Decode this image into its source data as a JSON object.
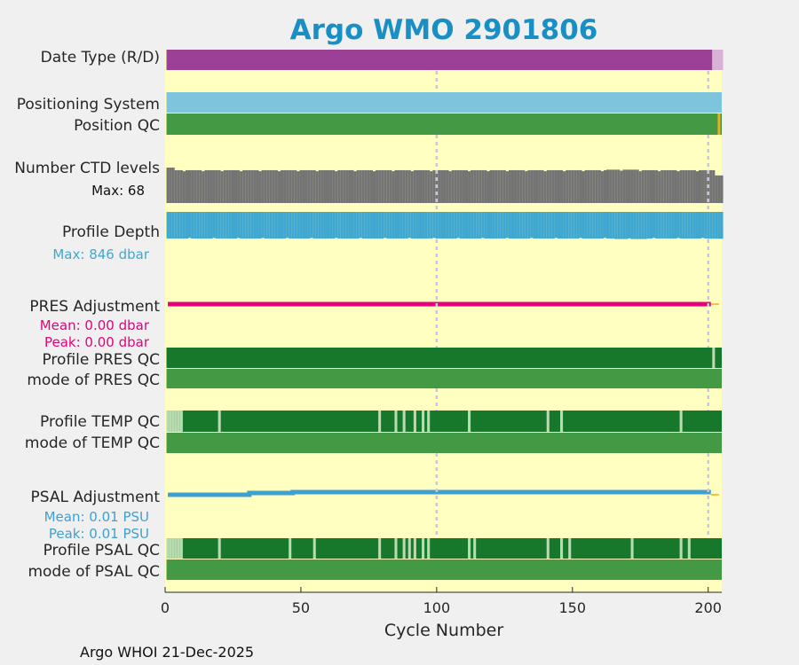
{
  "chart_data": {
    "type": "status-timeline",
    "title": "Argo WMO 2901806",
    "xlabel": "Cycle Number",
    "xlim": [
      0,
      205
    ],
    "xticks": [
      0,
      50,
      100,
      150,
      200
    ],
    "footer": "Argo WHOI 21-Dec-2025",
    "dashed_cycles": [
      100,
      200
    ],
    "colors": {
      "title": "#1a8fc4",
      "background": "#ffffc0",
      "realtime": "#9b3f97",
      "delayed": "#d9b0d6",
      "positioning": "#7ec4dd",
      "qc_good": "#449944",
      "qc_dark": "#17772b",
      "qc_light": "#b8dbb0",
      "qc_warn": "#e6b020",
      "ctd": "#747474",
      "depth": "#40a8d0",
      "pres": "#e6007e",
      "psal": "#3fa0d0",
      "text": "#262626"
    },
    "rows": {
      "date_type": {
        "label": "Date Type (R/D)",
        "realtime_cycles": [
          1,
          201
        ],
        "delayed_cycles": [
          202,
          205
        ]
      },
      "positioning": {
        "label": "Positioning System"
      },
      "position_qc": {
        "label": "Position QC",
        "flag_cycles": [
          204
        ]
      },
      "ctd_levels": {
        "label": "Number CTD levels",
        "max_text": "Max: 68",
        "max": 68,
        "typical": 63,
        "first_cycles": 68
      },
      "profile_depth": {
        "label": "Profile Depth",
        "max_text": "Max:  846 dbar",
        "max": 846,
        "typical": 820
      },
      "pres_adjust": {
        "label": "PRES Adjustment",
        "mean_text": "Mean: 0.00 dbar",
        "peak_text": "Peak: 0.00 dbar",
        "value": 0.0
      },
      "profile_pres_qc": {
        "label": "Profile PRES QC",
        "light_cycles": [
          202
        ]
      },
      "mode_pres_qc": {
        "label": "mode of PRES QC"
      },
      "profile_temp_qc": {
        "label": "Profile TEMP QC",
        "light_cycles": [
          1,
          2,
          3,
          4,
          5,
          6,
          20,
          79,
          85,
          88,
          92,
          95,
          97,
          112,
          141,
          146,
          190
        ]
      },
      "mode_temp_qc": {
        "label": "mode of TEMP QC"
      },
      "psal_adjust": {
        "label": "PSAL Adjustment",
        "mean_text": "Mean: 0.01 PSU",
        "peak_text": "Peak: 0.01 PSU",
        "value": 0.01
      },
      "profile_psal_qc": {
        "label": "Profile PSAL QC",
        "light_cycles": [
          1,
          2,
          3,
          4,
          5,
          6,
          20,
          46,
          55,
          79,
          85,
          88,
          90,
          92,
          95,
          97,
          112,
          114,
          141,
          146,
          149,
          172,
          190,
          193
        ]
      },
      "mode_psal_qc": {
        "label": "mode of PSAL QC"
      }
    }
  }
}
